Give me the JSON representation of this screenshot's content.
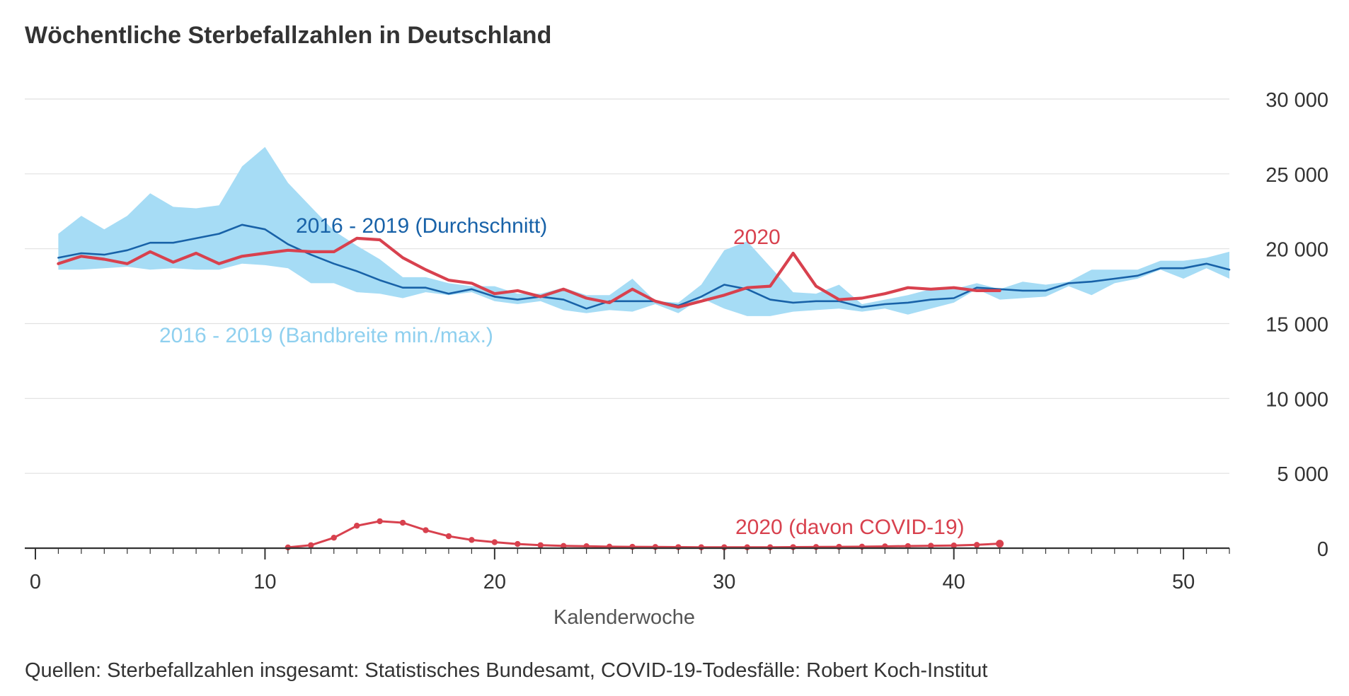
{
  "chart_data": {
    "type": "line",
    "title": "Wöchentliche Sterbefallzahlen in Deutschland",
    "xlabel": "Kalenderwoche",
    "ylabel": "",
    "source": "Quellen: Sterbefallzahlen insgesamt: Statistisches Bundesamt, COVID-19-Todesfälle: Robert Koch-Institut",
    "xlim": [
      0,
      52
    ],
    "ylim": [
      0,
      30000
    ],
    "x_ticks": [
      {
        "v": 0,
        "label": "0"
      },
      {
        "v": 10,
        "label": "10"
      },
      {
        "v": 20,
        "label": "20"
      },
      {
        "v": 30,
        "label": "30"
      },
      {
        "v": 40,
        "label": "40"
      },
      {
        "v": 50,
        "label": "50"
      }
    ],
    "y_ticks": [
      {
        "v": 0,
        "label": "0"
      },
      {
        "v": 5000,
        "label": "5 000"
      },
      {
        "v": 10000,
        "label": "10 000"
      },
      {
        "v": 15000,
        "label": "15 000"
      },
      {
        "v": 20000,
        "label": "20 000"
      },
      {
        "v": 25000,
        "label": "25 000"
      },
      {
        "v": 30000,
        "label": "30 000"
      }
    ],
    "grid": true,
    "y_axis_position": "right",
    "band": {
      "name": "2016 - 2019 (Bandbreite min./max.)",
      "color": "#a6dcf5",
      "x": [
        1,
        2,
        3,
        4,
        5,
        6,
        7,
        8,
        9,
        10,
        11,
        12,
        13,
        14,
        15,
        16,
        17,
        18,
        19,
        20,
        21,
        22,
        23,
        24,
        25,
        26,
        27,
        28,
        29,
        30,
        31,
        32,
        33,
        34,
        35,
        36,
        37,
        38,
        39,
        40,
        41,
        42,
        43,
        44,
        45,
        46,
        47,
        48,
        49,
        50,
        51,
        52
      ],
      "min": [
        18600,
        18600,
        18700,
        18800,
        18600,
        18700,
        18600,
        18600,
        19000,
        18900,
        18700,
        17700,
        17700,
        17100,
        17000,
        16700,
        17100,
        16900,
        17100,
        16500,
        16300,
        16500,
        15900,
        15700,
        15900,
        15800,
        16300,
        15700,
        16700,
        16000,
        15500,
        15500,
        15800,
        15900,
        16000,
        15800,
        16000,
        15600,
        16000,
        16400,
        17300,
        16600,
        16700,
        16800,
        17500,
        16900,
        17700,
        18000,
        18600,
        18000,
        18700,
        18000
      ],
      "max": [
        21000,
        22200,
        21300,
        22200,
        23700,
        22800,
        22700,
        22900,
        25500,
        26800,
        24400,
        22800,
        21200,
        20200,
        19300,
        18100,
        18100,
        17700,
        17500,
        17500,
        17000,
        17000,
        17400,
        16900,
        16900,
        18000,
        16500,
        16400,
        17600,
        19900,
        20500,
        18800,
        17100,
        17000,
        17600,
        16300,
        16600,
        16900,
        17300,
        17300,
        17700,
        17300,
        17800,
        17600,
        17800,
        18600,
        18600,
        18600,
        19200,
        19200,
        19400,
        19800
      ]
    },
    "series": [
      {
        "name": "2016 - 2019 (Durchschnitt)",
        "color": "#1862a8",
        "x": [
          1,
          2,
          3,
          4,
          5,
          6,
          7,
          8,
          9,
          10,
          11,
          12,
          13,
          14,
          15,
          16,
          17,
          18,
          19,
          20,
          21,
          22,
          23,
          24,
          25,
          26,
          27,
          28,
          29,
          30,
          31,
          32,
          33,
          34,
          35,
          36,
          37,
          38,
          39,
          40,
          41,
          42,
          43,
          44,
          45,
          46,
          47,
          48,
          49,
          50,
          51,
          52
        ],
        "values": [
          19400,
          19700,
          19600,
          19900,
          20400,
          20400,
          20700,
          21000,
          21600,
          21300,
          20300,
          19600,
          19000,
          18500,
          17900,
          17400,
          17400,
          17000,
          17300,
          16800,
          16600,
          16800,
          16600,
          16000,
          16500,
          16500,
          16500,
          16200,
          16800,
          17600,
          17300,
          16600,
          16400,
          16500,
          16500,
          16100,
          16300,
          16400,
          16600,
          16700,
          17400,
          17300,
          17200,
          17200,
          17700,
          17800,
          18000,
          18200,
          18700,
          18700,
          19000,
          18600
        ]
      },
      {
        "name": "2020",
        "color": "#d8414e",
        "x": [
          1,
          2,
          3,
          4,
          5,
          6,
          7,
          8,
          9,
          10,
          11,
          12,
          13,
          14,
          15,
          16,
          17,
          18,
          19,
          20,
          21,
          22,
          23,
          24,
          25,
          26,
          27,
          28,
          29,
          30,
          31,
          32,
          33,
          34,
          35,
          36,
          37,
          38,
          39,
          40,
          41,
          42
        ],
        "values": [
          19000,
          19500,
          19300,
          19000,
          19800,
          19100,
          19700,
          19000,
          19500,
          19700,
          19900,
          19800,
          19800,
          20700,
          20600,
          19400,
          18600,
          17900,
          17700,
          17000,
          17200,
          16800,
          17300,
          16700,
          16400,
          17300,
          16500,
          16100,
          16500,
          16900,
          17400,
          17500,
          19700,
          17500,
          16600,
          16700,
          17000,
          17400,
          17300,
          17400,
          17200,
          17200
        ]
      },
      {
        "name": "2020 (davon COVID-19)",
        "color": "#d8414e",
        "markers": true,
        "x": [
          11,
          12,
          13,
          14,
          15,
          16,
          17,
          18,
          19,
          20,
          21,
          22,
          23,
          24,
          25,
          26,
          27,
          28,
          29,
          30,
          31,
          32,
          33,
          34,
          35,
          36,
          37,
          38,
          39,
          40,
          41,
          42
        ],
        "values": [
          50,
          200,
          700,
          1500,
          1800,
          1700,
          1200,
          800,
          550,
          400,
          280,
          200,
          150,
          130,
          100,
          90,
          80,
          70,
          60,
          60,
          60,
          60,
          70,
          80,
          90,
          100,
          120,
          140,
          160,
          180,
          220,
          300
        ]
      }
    ]
  }
}
